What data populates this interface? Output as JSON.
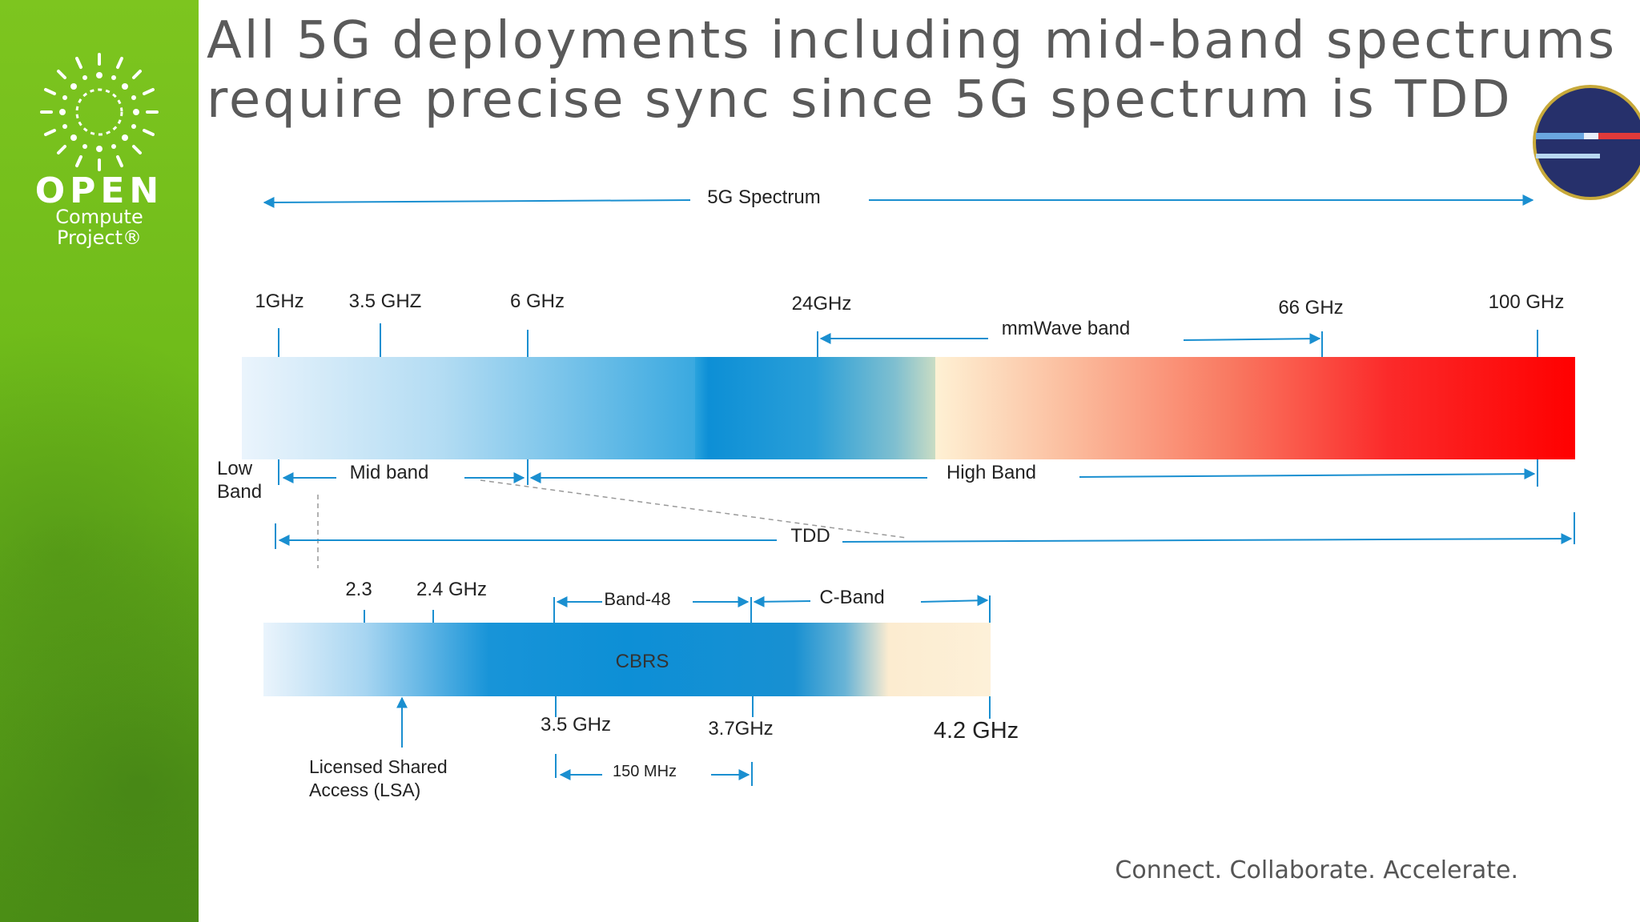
{
  "slide": {
    "title_line1": "All 5G deployments including mid-band spectrums",
    "title_line2": "require precise sync since 5G spectrum is TDD",
    "footer": "Connect. Collaborate. Accelerate."
  },
  "logo": {
    "word": "OPEN",
    "sub1": "Compute",
    "sub2": "Project®"
  },
  "diagram": {
    "spectrum_label": "5G Spectrum",
    "upper_ticks": {
      "t1": "1GHz",
      "t2": "3.5 GHZ",
      "t3": "6 GHz",
      "t4": "24GHz",
      "t5": "66 GHz",
      "t6": "100 GHz"
    },
    "mmwave_label": "mmWave band",
    "low_band_line1": "Low",
    "low_band_line2": "Band",
    "mid_band": "Mid band",
    "high_band": "High Band",
    "tdd": "TDD",
    "lower_ticks": {
      "t1": "2.3",
      "t2": "2.4 GHz"
    },
    "band48": "Band-48",
    "cband": "C-Band",
    "cbrs": "CBRS",
    "bottom_ticks": {
      "t1": "3.5 GHz",
      "t2": "3.7GHz",
      "t3": "4.2 GHz"
    },
    "lsa_line1": "Licensed Shared",
    "lsa_line2": "Access (LSA)",
    "width_150": "150 MHz"
  },
  "colors": {
    "arrow": "#1a8fd0",
    "title": "#5a5a5a",
    "sidebar_green": "#6fbb1a"
  }
}
